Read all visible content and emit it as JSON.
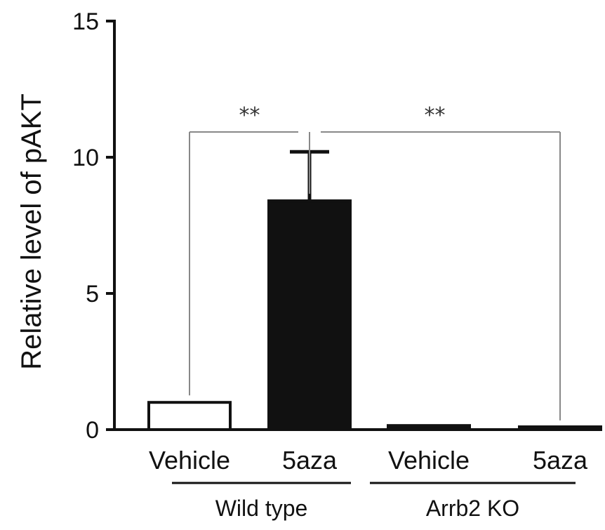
{
  "chart_data": {
    "type": "bar",
    "ylabel": "Relative level of pAKT",
    "ylim": [
      0,
      15
    ],
    "yticks": [
      "0",
      "5",
      "10",
      "15"
    ],
    "categories": [
      "Vehicle",
      "5aza",
      "Vehicle",
      "5aza"
    ],
    "values": [
      1.0,
      8.4,
      0.15,
      0.08
    ],
    "errors": [
      0,
      1.8,
      0,
      0
    ],
    "fills": [
      "#ffffff",
      "#111111",
      "#111111",
      "#111111"
    ],
    "groups": [
      {
        "label": "Wild type",
        "members": [
          0,
          1
        ]
      },
      {
        "label": "Arrb2 KO",
        "members": [
          2,
          3
        ]
      }
    ],
    "significance": [
      {
        "from": 0,
        "to": 1,
        "label": "**"
      },
      {
        "from": 1,
        "to": 3,
        "label": "**"
      }
    ]
  }
}
